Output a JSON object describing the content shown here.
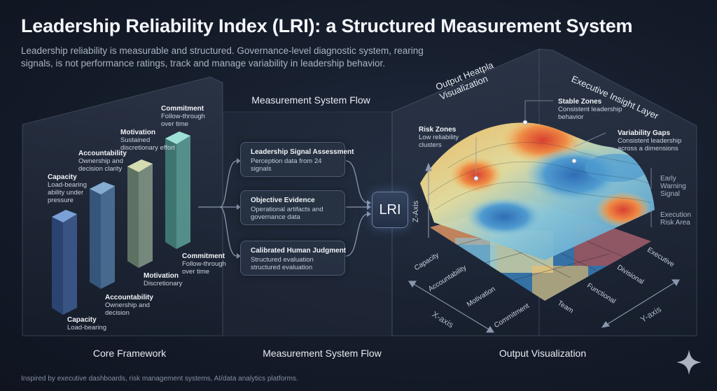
{
  "header": {
    "title": "Leadership Reliability Index (LRI): a Structured Measurement System",
    "subtitle": "Leadership reliability is measurable and structured. Governance-level diagnostic system, rearing signals, is not performance ratings, track and manage variability in leadership behavior."
  },
  "core_framework": {
    "section_label": "Core Framework",
    "pillars_top": [
      {
        "title": "Capacity",
        "desc": "Load-bearing ability under pressure"
      },
      {
        "title": "Accountability",
        "desc": "Ownership and decision clarity"
      },
      {
        "title": "Motivation",
        "desc": "Sustained discretionary effort"
      },
      {
        "title": "Commitment",
        "desc": "Follow-through over time"
      }
    ],
    "pillars_bottom": [
      {
        "title": "Capacity",
        "desc": "Load-bearing"
      },
      {
        "title": "Accountability",
        "desc": "Ownership and decision"
      },
      {
        "title": "Motivation",
        "desc": "Discretionary"
      },
      {
        "title": "Commitment",
        "desc": "Follow-through over time"
      }
    ],
    "colors": [
      "#4a6fa8",
      "#5e86a8",
      "#8ea89a",
      "#6fb0a8"
    ]
  },
  "measurement_flow": {
    "top_label": "Measurement System Flow",
    "bottom_label": "Measurement System Flow",
    "inputs": [
      {
        "title": "Leadership Signal Assessment",
        "desc": "Perception data from 24 signals"
      },
      {
        "title": "Objective Evidence",
        "desc": "Operational artifacts and governance data"
      },
      {
        "title": "Calibrated Human Judgment",
        "desc": "Structured evaluation structured evaluation"
      }
    ],
    "hub_label": "LRI"
  },
  "output": {
    "section_label": "Output Visualization",
    "heatmap_title": "Output Heatpla\nVisualization",
    "insight_layer_title": "Executive Insight Layer",
    "callouts": [
      {
        "title": "Risk Zones",
        "desc": "Low reliability clusters"
      },
      {
        "title": "Stable Zones",
        "desc": "Consistent leadership behavior"
      },
      {
        "title": "Variability Gaps",
        "desc": "Consistent leadership across a dimensions"
      }
    ],
    "side_labels": [
      "Early Warning Signal",
      "Execution Risk Area"
    ],
    "x_categories": [
      "Capacity",
      "Accountability",
      "Motivation",
      "Commitment"
    ],
    "y_categories": [
      "Executive",
      "Divisional",
      "Functional",
      "Team"
    ],
    "x_axis": "X-axis",
    "y_axis": "Y-axis",
    "z_axis": "Z-Axis",
    "palette": [
      "#2f6db5",
      "#4f9bd0",
      "#8cc8d9",
      "#e9e3a3",
      "#f4c067",
      "#ef8a44",
      "#d8402f"
    ]
  },
  "footer": "Inspired by executive dashboards, risk management systems, AI/data analytics platforms."
}
